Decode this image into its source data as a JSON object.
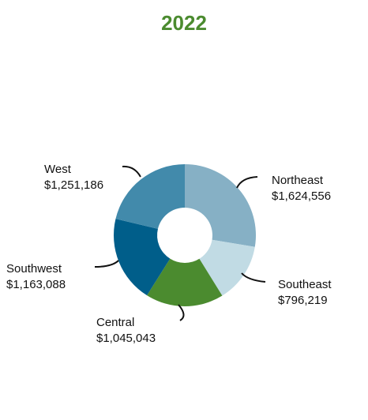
{
  "colors": {
    "title": "#4b8b2f",
    "label": "#111111",
    "leader": "#111111"
  },
  "chart_data": {
    "type": "pie",
    "variant": "donut",
    "title": "2022",
    "categories": [
      "Northeast",
      "Southeast",
      "Central",
      "Southwest",
      "West"
    ],
    "values": [
      1624556,
      796219,
      1045043,
      1163088,
      1251186
    ],
    "value_labels": [
      "$1,624,556",
      "$796,219",
      "$1,045,043",
      "$1,163,088",
      "$1,251,186"
    ],
    "colors": [
      "#86b0c5",
      "#c1dbe4",
      "#4b8b2f",
      "#005e8a",
      "#428aab"
    ],
    "legend": "none",
    "start": "12 o'clock, clockwise"
  }
}
